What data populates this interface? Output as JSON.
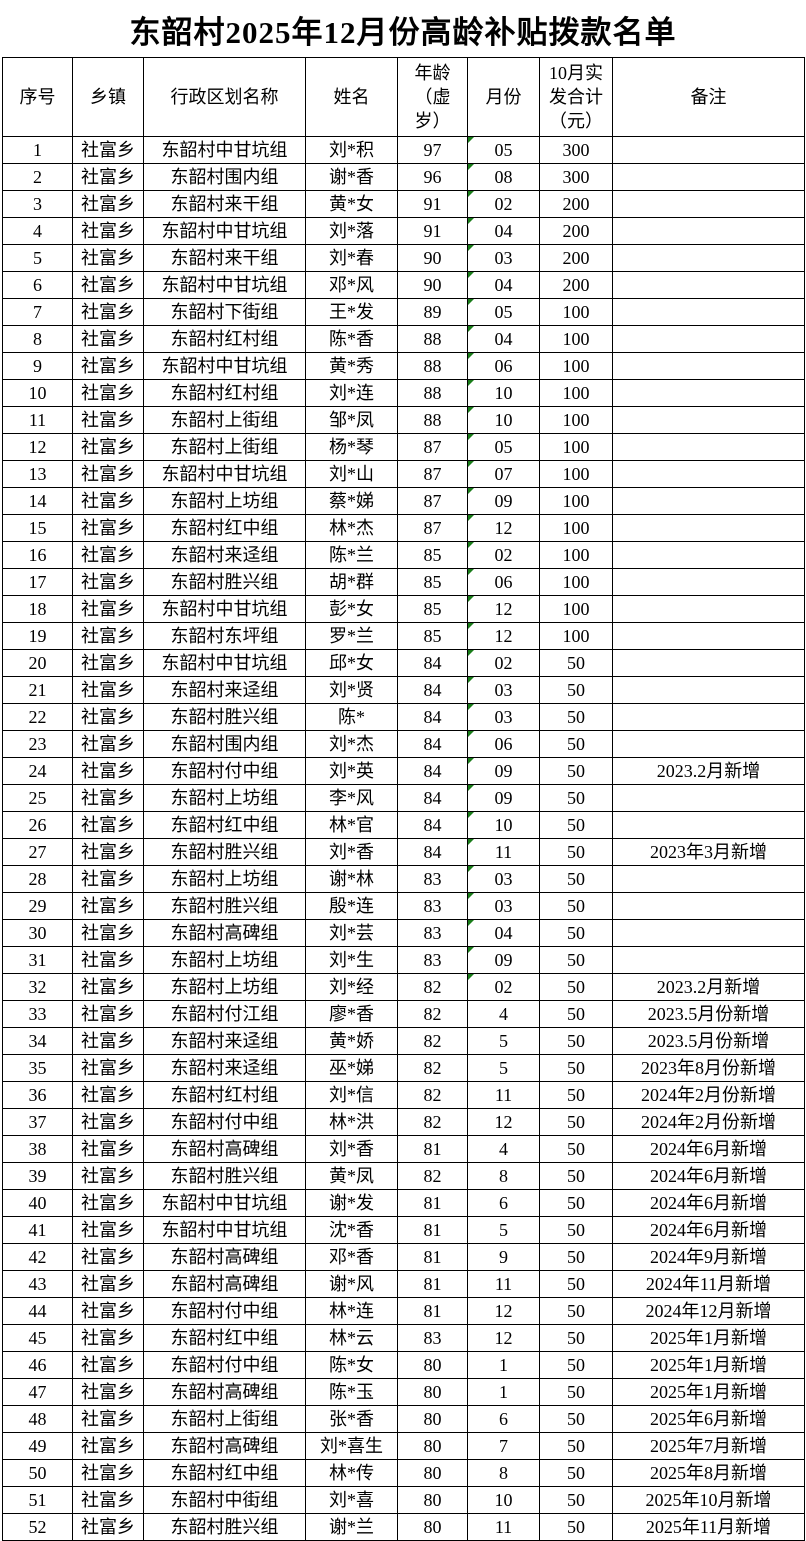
{
  "title": "东韶村2025年12月份高龄补贴拨款名单",
  "colors": {
    "background": "#ffffff",
    "text": "#000000",
    "border": "#000000",
    "text_format_flag_green": "#1a7d1a"
  },
  "table": {
    "columns": [
      {
        "key": "seq",
        "label": "序号"
      },
      {
        "key": "township",
        "label": "乡镇"
      },
      {
        "key": "division",
        "label": "行政区划名称"
      },
      {
        "key": "name",
        "label": "姓名"
      },
      {
        "key": "age",
        "label": "年龄\n（虚\n岁）"
      },
      {
        "key": "month",
        "label": "月份"
      },
      {
        "key": "amount",
        "label": "10月实\n发合计\n（元）"
      },
      {
        "key": "remark",
        "label": "备注"
      }
    ],
    "rows": [
      {
        "seq": "1",
        "township": "社富乡",
        "division": "东韶村中甘坑组",
        "name": "刘*积",
        "age": "97",
        "month": "05",
        "amount": "300",
        "remark": "",
        "month_text_flag": true
      },
      {
        "seq": "2",
        "township": "社富乡",
        "division": "东韶村围内组",
        "name": "谢*香",
        "age": "96",
        "month": "08",
        "amount": "300",
        "remark": "",
        "month_text_flag": true
      },
      {
        "seq": "3",
        "township": "社富乡",
        "division": "东韶村来干组",
        "name": "黄*女",
        "age": "91",
        "month": "02",
        "amount": "200",
        "remark": "",
        "month_text_flag": true
      },
      {
        "seq": "4",
        "township": "社富乡",
        "division": "东韶村中甘坑组",
        "name": "刘*落",
        "age": "91",
        "month": "04",
        "amount": "200",
        "remark": "",
        "month_text_flag": true
      },
      {
        "seq": "5",
        "township": "社富乡",
        "division": "东韶村来干组",
        "name": "刘*春",
        "age": "90",
        "month": "03",
        "amount": "200",
        "remark": "",
        "month_text_flag": true
      },
      {
        "seq": "6",
        "township": "社富乡",
        "division": "东韶村中甘坑组",
        "name": "邓*风",
        "age": "90",
        "month": "04",
        "amount": "200",
        "remark": "",
        "month_text_flag": true
      },
      {
        "seq": "7",
        "township": "社富乡",
        "division": "东韶村下街组",
        "name": "王*发",
        "age": "89",
        "month": "05",
        "amount": "100",
        "remark": "",
        "month_text_flag": true
      },
      {
        "seq": "8",
        "township": "社富乡",
        "division": "东韶村红村组",
        "name": "陈*香",
        "age": "88",
        "month": "04",
        "amount": "100",
        "remark": "",
        "month_text_flag": true
      },
      {
        "seq": "9",
        "township": "社富乡",
        "division": "东韶村中甘坑组",
        "name": "黄*秀",
        "age": "88",
        "month": "06",
        "amount": "100",
        "remark": "",
        "month_text_flag": true
      },
      {
        "seq": "10",
        "township": "社富乡",
        "division": "东韶村红村组",
        "name": "刘*连",
        "age": "88",
        "month": "10",
        "amount": "100",
        "remark": "",
        "month_text_flag": true
      },
      {
        "seq": "11",
        "township": "社富乡",
        "division": "东韶村上街组",
        "name": "邹*凤",
        "age": "88",
        "month": "10",
        "amount": "100",
        "remark": "",
        "month_text_flag": true
      },
      {
        "seq": "12",
        "township": "社富乡",
        "division": "东韶村上街组",
        "name": "杨*琴",
        "age": "87",
        "month": "05",
        "amount": "100",
        "remark": "",
        "month_text_flag": true
      },
      {
        "seq": "13",
        "township": "社富乡",
        "division": "东韶村中甘坑组",
        "name": "刘*山",
        "age": "87",
        "month": "07",
        "amount": "100",
        "remark": "",
        "month_text_flag": true
      },
      {
        "seq": "14",
        "township": "社富乡",
        "division": "东韶村上坊组",
        "name": "蔡*娣",
        "age": "87",
        "month": "09",
        "amount": "100",
        "remark": "",
        "month_text_flag": true
      },
      {
        "seq": "15",
        "township": "社富乡",
        "division": "东韶村红中组",
        "name": "林*杰",
        "age": "87",
        "month": "12",
        "amount": "100",
        "remark": "",
        "month_text_flag": true
      },
      {
        "seq": "16",
        "township": "社富乡",
        "division": "东韶村来迳组",
        "name": "陈*兰",
        "age": "85",
        "month": "02",
        "amount": "100",
        "remark": "",
        "month_text_flag": true
      },
      {
        "seq": "17",
        "township": "社富乡",
        "division": "东韶村胜兴组",
        "name": "胡*群",
        "age": "85",
        "month": "06",
        "amount": "100",
        "remark": "",
        "month_text_flag": true
      },
      {
        "seq": "18",
        "township": "社富乡",
        "division": "东韶村中甘坑组",
        "name": "彭*女",
        "age": "85",
        "month": "12",
        "amount": "100",
        "remark": "",
        "month_text_flag": true
      },
      {
        "seq": "19",
        "township": "社富乡",
        "division": "东韶村东坪组",
        "name": "罗*兰",
        "age": "85",
        "month": "12",
        "amount": "100",
        "remark": "",
        "month_text_flag": true
      },
      {
        "seq": "20",
        "township": "社富乡",
        "division": "东韶村中甘坑组",
        "name": "邱*女",
        "age": "84",
        "month": "02",
        "amount": "50",
        "remark": "",
        "month_text_flag": true
      },
      {
        "seq": "21",
        "township": "社富乡",
        "division": "东韶村来迳组",
        "name": "刘*贤",
        "age": "84",
        "month": "03",
        "amount": "50",
        "remark": "",
        "month_text_flag": true
      },
      {
        "seq": "22",
        "township": "社富乡",
        "division": "东韶村胜兴组",
        "name": "陈*",
        "age": "84",
        "month": "03",
        "amount": "50",
        "remark": "",
        "month_text_flag": true
      },
      {
        "seq": "23",
        "township": "社富乡",
        "division": "东韶村围内组",
        "name": "刘*杰",
        "age": "84",
        "month": "06",
        "amount": "50",
        "remark": "",
        "month_text_flag": true
      },
      {
        "seq": "24",
        "township": "社富乡",
        "division": "东韶村付中组",
        "name": "刘*英",
        "age": "84",
        "month": "09",
        "amount": "50",
        "remark": "2023.2月新增",
        "month_text_flag": true
      },
      {
        "seq": "25",
        "township": "社富乡",
        "division": "东韶村上坊组",
        "name": "李*风",
        "age": "84",
        "month": "09",
        "amount": "50",
        "remark": "",
        "month_text_flag": true
      },
      {
        "seq": "26",
        "township": "社富乡",
        "division": "东韶村红中组",
        "name": "林*官",
        "age": "84",
        "month": "10",
        "amount": "50",
        "remark": "",
        "month_text_flag": true
      },
      {
        "seq": "27",
        "township": "社富乡",
        "division": "东韶村胜兴组",
        "name": "刘*香",
        "age": "84",
        "month": "11",
        "amount": "50",
        "remark": "2023年3月新增",
        "month_text_flag": true
      },
      {
        "seq": "28",
        "township": "社富乡",
        "division": "东韶村上坊组",
        "name": "谢*林",
        "age": "83",
        "month": "03",
        "amount": "50",
        "remark": "",
        "month_text_flag": true
      },
      {
        "seq": "29",
        "township": "社富乡",
        "division": "东韶村胜兴组",
        "name": "殷*连",
        "age": "83",
        "month": "03",
        "amount": "50",
        "remark": "",
        "month_text_flag": true
      },
      {
        "seq": "30",
        "township": "社富乡",
        "division": "东韶村高碑组",
        "name": "刘*芸",
        "age": "83",
        "month": "04",
        "amount": "50",
        "remark": "",
        "month_text_flag": true
      },
      {
        "seq": "31",
        "township": "社富乡",
        "division": "东韶村上坊组",
        "name": "刘*生",
        "age": "83",
        "month": "09",
        "amount": "50",
        "remark": "",
        "month_text_flag": true
      },
      {
        "seq": "32",
        "township": "社富乡",
        "division": "东韶村上坊组",
        "name": "刘*经",
        "age": "82",
        "month": "02",
        "amount": "50",
        "remark": "2023.2月新增",
        "month_text_flag": true
      },
      {
        "seq": "33",
        "township": "社富乡",
        "division": "东韶村付江组",
        "name": "廖*香",
        "age": "82",
        "month": "4",
        "amount": "50",
        "remark": "2023.5月份新增",
        "month_text_flag": false
      },
      {
        "seq": "34",
        "township": "社富乡",
        "division": "东韶村来迳组",
        "name": "黄*娇",
        "age": "82",
        "month": "5",
        "amount": "50",
        "remark": "2023.5月份新增",
        "month_text_flag": false
      },
      {
        "seq": "35",
        "township": "社富乡",
        "division": "东韶村来迳组",
        "name": "巫*娣",
        "age": "82",
        "month": "5",
        "amount": "50",
        "remark": "2023年8月份新增",
        "month_text_flag": false
      },
      {
        "seq": "36",
        "township": "社富乡",
        "division": "东韶村红村组",
        "name": "刘*信",
        "age": "82",
        "month": "11",
        "amount": "50",
        "remark": "2024年2月份新增",
        "month_text_flag": false
      },
      {
        "seq": "37",
        "township": "社富乡",
        "division": "东韶村付中组",
        "name": "林*洪",
        "age": "82",
        "month": "12",
        "amount": "50",
        "remark": "2024年2月份新增",
        "month_text_flag": false
      },
      {
        "seq": "38",
        "township": "社富乡",
        "division": "东韶村高碑组",
        "name": "刘*香",
        "age": "81",
        "month": "4",
        "amount": "50",
        "remark": "2024年6月新增",
        "month_text_flag": false
      },
      {
        "seq": "39",
        "township": "社富乡",
        "division": "东韶村胜兴组",
        "name": "黄*凤",
        "age": "82",
        "month": "8",
        "amount": "50",
        "remark": "2024年6月新增",
        "month_text_flag": false
      },
      {
        "seq": "40",
        "township": "社富乡",
        "division": "东韶村中甘坑组",
        "name": "谢*发",
        "age": "81",
        "month": "6",
        "amount": "50",
        "remark": "2024年6月新增",
        "month_text_flag": false
      },
      {
        "seq": "41",
        "township": "社富乡",
        "division": "东韶村中甘坑组",
        "name": "沈*香",
        "age": "81",
        "month": "5",
        "amount": "50",
        "remark": "2024年6月新增",
        "month_text_flag": false
      },
      {
        "seq": "42",
        "township": "社富乡",
        "division": "东韶村高碑组",
        "name": "邓*香",
        "age": "81",
        "month": "9",
        "amount": "50",
        "remark": "2024年9月新增",
        "month_text_flag": false
      },
      {
        "seq": "43",
        "township": "社富乡",
        "division": "东韶村高碑组",
        "name": "谢*风",
        "age": "81",
        "month": "11",
        "amount": "50",
        "remark": "2024年11月新增",
        "month_text_flag": false
      },
      {
        "seq": "44",
        "township": "社富乡",
        "division": "东韶村付中组",
        "name": "林*连",
        "age": "81",
        "month": "12",
        "amount": "50",
        "remark": "2024年12月新增",
        "month_text_flag": false
      },
      {
        "seq": "45",
        "township": "社富乡",
        "division": "东韶村红中组",
        "name": "林*云",
        "age": "83",
        "month": "12",
        "amount": "50",
        "remark": "2025年1月新增",
        "month_text_flag": false
      },
      {
        "seq": "46",
        "township": "社富乡",
        "division": "东韶村付中组",
        "name": "陈*女",
        "age": "80",
        "month": "1",
        "amount": "50",
        "remark": "2025年1月新增",
        "month_text_flag": false
      },
      {
        "seq": "47",
        "township": "社富乡",
        "division": "东韶村高碑组",
        "name": "陈*玉",
        "age": "80",
        "month": "1",
        "amount": "50",
        "remark": "2025年1月新增",
        "month_text_flag": false
      },
      {
        "seq": "48",
        "township": "社富乡",
        "division": "东韶村上街组",
        "name": "张*香",
        "age": "80",
        "month": "6",
        "amount": "50",
        "remark": "2025年6月新增",
        "month_text_flag": false
      },
      {
        "seq": "49",
        "township": "社富乡",
        "division": "东韶村高碑组",
        "name": "刘*喜生",
        "age": "80",
        "month": "7",
        "amount": "50",
        "remark": "2025年7月新增",
        "month_text_flag": false
      },
      {
        "seq": "50",
        "township": "社富乡",
        "division": "东韶村红中组",
        "name": "林*传",
        "age": "80",
        "month": "8",
        "amount": "50",
        "remark": "2025年8月新增",
        "month_text_flag": false
      },
      {
        "seq": "51",
        "township": "社富乡",
        "division": "东韶村中街组",
        "name": "刘*喜",
        "age": "80",
        "month": "10",
        "amount": "50",
        "remark": "2025年10月新增",
        "month_text_flag": false
      },
      {
        "seq": "52",
        "township": "社富乡",
        "division": "东韶村胜兴组",
        "name": "谢*兰",
        "age": "80",
        "month": "11",
        "amount": "50",
        "remark": "2025年11月新增",
        "month_text_flag": false
      }
    ]
  }
}
